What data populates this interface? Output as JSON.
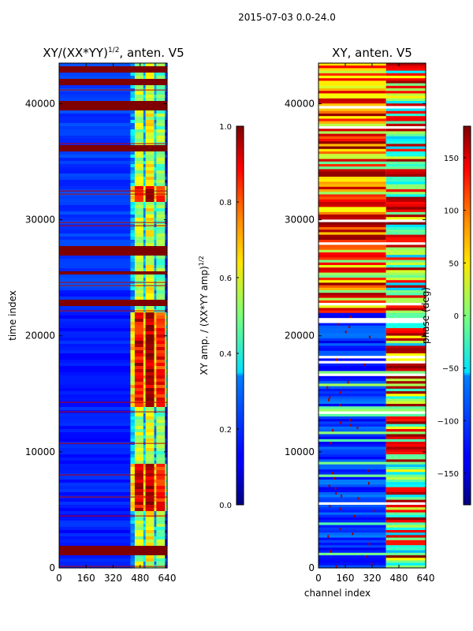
{
  "figure_title": "2015-07-03 0.0-24.0",
  "chart_data": [
    {
      "type": "heatmap",
      "title": "XY/(XX*YY)^1/2, anten. V5",
      "title_main": "XY/(XX*YY)",
      "title_sup": "1/2",
      "title_tail": ", anten. V5",
      "xlabel": "",
      "ylabel": "time index",
      "xlim": [
        0,
        640
      ],
      "ylim": [
        0,
        43500
      ],
      "xticks": [
        0,
        160,
        320,
        480,
        640
      ],
      "yticks": [
        0,
        10000,
        20000,
        30000,
        40000
      ],
      "colormap": "jet",
      "colorbar": {
        "label": "XY amp. / (XX*YY amp)^1/2",
        "label_main": "XY amp. / (XX*YY amp)",
        "label_sup": "1/2",
        "range": [
          0.0,
          1.0
        ],
        "ticks": [
          "0.0",
          "0.2",
          "0.4",
          "0.6",
          "0.8",
          "1.0"
        ]
      },
      "saturated_time_bands": [
        [
          1200,
          1800
        ],
        [
          22500,
          23200
        ],
        [
          26800,
          27600
        ],
        [
          39500,
          40200
        ],
        [
          41500,
          42200
        ],
        [
          42800,
          43300
        ],
        [
          3400,
          3500
        ],
        [
          25200,
          25600
        ],
        [
          36000,
          36300
        ]
      ],
      "hot_channel_blocks": [
        [
          5000,
          9000
        ],
        [
          14000,
          22000
        ],
        [
          31500,
          33000
        ]
      ]
    },
    {
      "type": "heatmap",
      "title": "XY, anten. V5",
      "xlabel": "channel index",
      "ylabel": "",
      "xlim": [
        0,
        640
      ],
      "ylim": [
        0,
        43500
      ],
      "xticks": [
        0,
        160,
        320,
        480,
        640
      ],
      "yticks": [
        0,
        10000,
        20000,
        30000,
        40000
      ],
      "colormap": "jet",
      "colorbar": {
        "label": "phase (deg)",
        "range": [
          -180,
          180
        ],
        "ticks": [
          "150",
          "100",
          "50",
          "0",
          "−50",
          "−100",
          "−150"
        ]
      }
    }
  ]
}
